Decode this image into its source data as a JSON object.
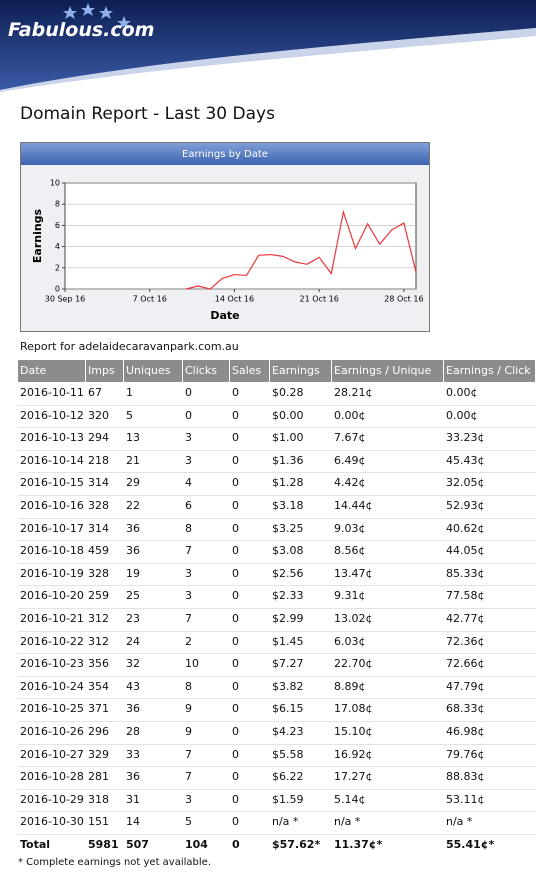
{
  "header": {
    "logo": "Fabulous.com"
  },
  "title": "Domain Report - Last 30 Days",
  "chart_data": {
    "type": "line",
    "title": "Earnings by Date",
    "xlabel": "Date",
    "ylabel": "Earnings",
    "x": [
      "2016-10-10",
      "2016-10-11",
      "2016-10-12",
      "2016-10-13",
      "2016-10-14",
      "2016-10-15",
      "2016-10-16",
      "2016-10-17",
      "2016-10-18",
      "2016-10-19",
      "2016-10-20",
      "2016-10-21",
      "2016-10-22",
      "2016-10-23",
      "2016-10-24",
      "2016-10-25",
      "2016-10-26",
      "2016-10-27",
      "2016-10-28",
      "2016-10-29"
    ],
    "series": [
      {
        "name": "Earnings",
        "color": "#e8383d",
        "values": [
          0,
          0.28,
          0,
          1.0,
          1.36,
          1.28,
          3.18,
          3.25,
          3.08,
          2.56,
          2.33,
          2.99,
          1.45,
          7.27,
          3.82,
          6.15,
          4.23,
          5.58,
          6.22,
          1.59
        ]
      }
    ],
    "xlim": [
      "2016-09-30",
      "2016-10-29"
    ],
    "xticks": [
      {
        "value": "2016-09-30",
        "label": "30 Sep 16"
      },
      {
        "value": "2016-10-07",
        "label": "7 Oct 16"
      },
      {
        "value": "2016-10-14",
        "label": "14 Oct 16"
      },
      {
        "value": "2016-10-21",
        "label": "21 Oct 16"
      },
      {
        "value": "2016-10-28",
        "label": "28 Oct 16"
      }
    ],
    "ylim": [
      0,
      10
    ],
    "yticks": [
      0,
      2,
      4,
      6,
      8,
      10
    ],
    "grid": true
  },
  "report_for": "Report for adelaidecaravanpark.com.au",
  "table": {
    "columns": [
      "Date",
      "Imps",
      "Uniques",
      "Clicks",
      "Sales",
      "Earnings",
      "Earnings / Unique",
      "Earnings / Click"
    ],
    "rows": [
      [
        "2016-10-11",
        "67",
        "1",
        "0",
        "0",
        "$0.28",
        "28.21¢",
        "0.00¢"
      ],
      [
        "2016-10-12",
        "320",
        "5",
        "0",
        "0",
        "$0.00",
        "0.00¢",
        "0.00¢"
      ],
      [
        "2016-10-13",
        "294",
        "13",
        "3",
        "0",
        "$1.00",
        "7.67¢",
        "33.23¢"
      ],
      [
        "2016-10-14",
        "218",
        "21",
        "3",
        "0",
        "$1.36",
        "6.49¢",
        "45.43¢"
      ],
      [
        "2016-10-15",
        "314",
        "29",
        "4",
        "0",
        "$1.28",
        "4.42¢",
        "32.05¢"
      ],
      [
        "2016-10-16",
        "328",
        "22",
        "6",
        "0",
        "$3.18",
        "14.44¢",
        "52.93¢"
      ],
      [
        "2016-10-17",
        "314",
        "36",
        "8",
        "0",
        "$3.25",
        "9.03¢",
        "40.62¢"
      ],
      [
        "2016-10-18",
        "459",
        "36",
        "7",
        "0",
        "$3.08",
        "8.56¢",
        "44.05¢"
      ],
      [
        "2016-10-19",
        "328",
        "19",
        "3",
        "0",
        "$2.56",
        "13.47¢",
        "85.33¢"
      ],
      [
        "2016-10-20",
        "259",
        "25",
        "3",
        "0",
        "$2.33",
        "9.31¢",
        "77.58¢"
      ],
      [
        "2016-10-21",
        "312",
        "23",
        "7",
        "0",
        "$2.99",
        "13.02¢",
        "42.77¢"
      ],
      [
        "2016-10-22",
        "312",
        "24",
        "2",
        "0",
        "$1.45",
        "6.03¢",
        "72.36¢"
      ],
      [
        "2016-10-23",
        "356",
        "32",
        "10",
        "0",
        "$7.27",
        "22.70¢",
        "72.66¢"
      ],
      [
        "2016-10-24",
        "354",
        "43",
        "8",
        "0",
        "$3.82",
        "8.89¢",
        "47.79¢"
      ],
      [
        "2016-10-25",
        "371",
        "36",
        "9",
        "0",
        "$6.15",
        "17.08¢",
        "68.33¢"
      ],
      [
        "2016-10-26",
        "296",
        "28",
        "9",
        "0",
        "$4.23",
        "15.10¢",
        "46.98¢"
      ],
      [
        "2016-10-27",
        "329",
        "33",
        "7",
        "0",
        "$5.58",
        "16.92¢",
        "79.76¢"
      ],
      [
        "2016-10-28",
        "281",
        "36",
        "7",
        "0",
        "$6.22",
        "17.27¢",
        "88.83¢"
      ],
      [
        "2016-10-29",
        "318",
        "31",
        "3",
        "0",
        "$1.59",
        "5.14¢",
        "53.11¢"
      ],
      [
        "2016-10-30",
        "151",
        "14",
        "5",
        "0",
        "n/a *",
        "n/a *",
        "n/a *"
      ]
    ],
    "total": [
      "Total",
      "5981",
      "507",
      "104",
      "0",
      "$57.62*",
      "11.37¢*",
      "55.41¢*"
    ]
  },
  "footnote": "* Complete earnings not yet available."
}
